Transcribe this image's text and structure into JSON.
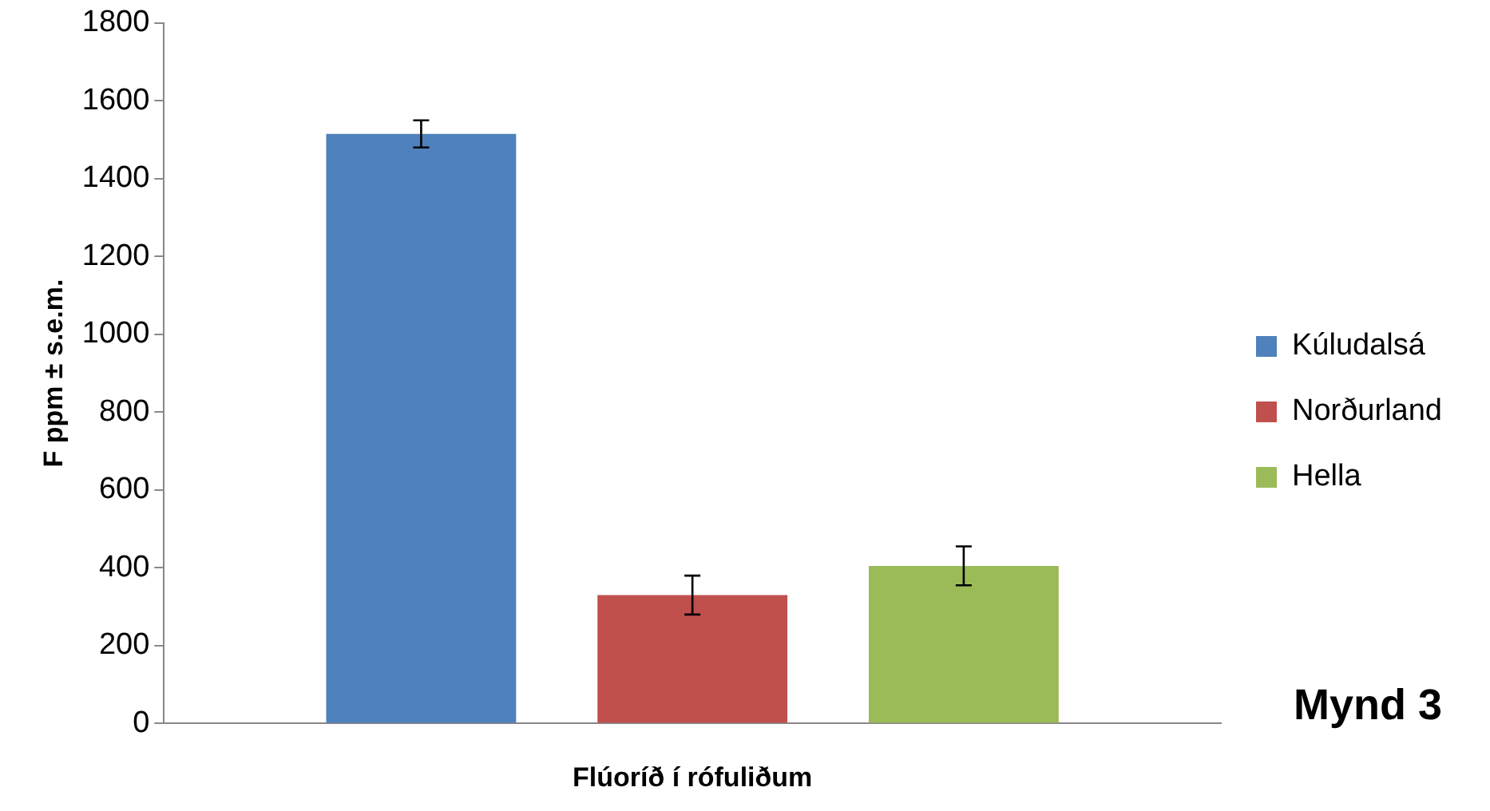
{
  "chart_data": {
    "type": "bar",
    "xlabel": "Flúoríð í rófuliðum",
    "ylabel": "F ppm ± s.e.m.",
    "categories": [
      null
    ],
    "series": [
      {
        "name": "Kúludalsá",
        "color": "#4f81bd",
        "values": [
          1515
        ],
        "errors": [
          35
        ]
      },
      {
        "name": "Norðurland",
        "color": "#c0504d",
        "values": [
          330
        ],
        "errors": [
          50
        ]
      },
      {
        "name": "Hella",
        "color": "#9bbb59",
        "values": [
          405
        ],
        "errors": [
          50
        ]
      }
    ],
    "ylim": [
      0,
      1800
    ],
    "yticks": [
      0,
      200,
      400,
      600,
      800,
      1000,
      1200,
      1400,
      1600,
      1800
    ],
    "grid": false,
    "legend": "right",
    "annotations": [
      "Mynd 3"
    ]
  }
}
